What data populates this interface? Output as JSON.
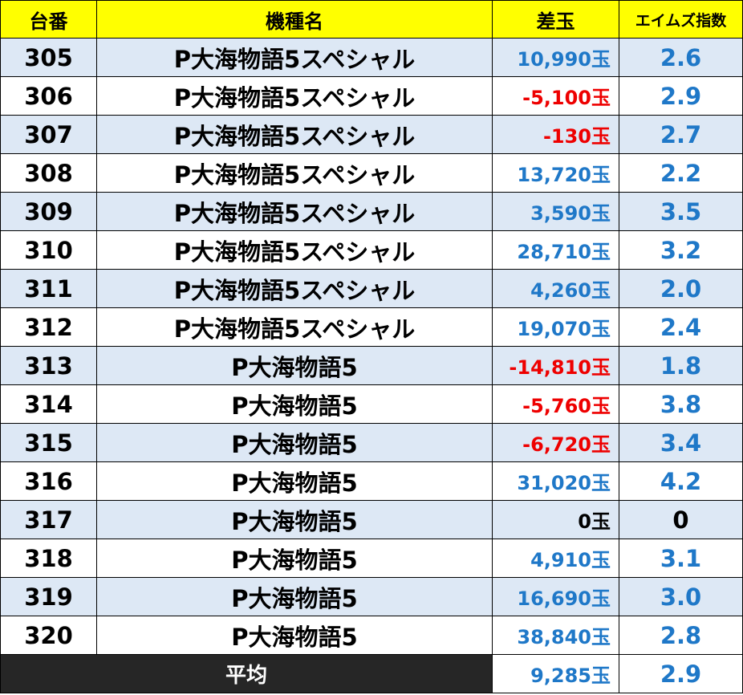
{
  "headers": {
    "unit": "台番",
    "model": "機種名",
    "diff": "差玉",
    "index": "エイムズ指数"
  },
  "colors": {
    "header_bg": "#ffff00",
    "alt_row_bg": "#dde8f5",
    "positive": "#1f78c8",
    "negative": "#ee0000",
    "footer_bg": "#262626"
  },
  "rows": [
    {
      "unit": "305",
      "model": "P大海物語5スペシャル",
      "diff": "10,990玉",
      "diff_sign": "positive",
      "index": "2.6",
      "index_sign": "positive"
    },
    {
      "unit": "306",
      "model": "P大海物語5スペシャル",
      "diff": "-5,100玉",
      "diff_sign": "negative",
      "index": "2.9",
      "index_sign": "positive"
    },
    {
      "unit": "307",
      "model": "P大海物語5スペシャル",
      "diff": "-130玉",
      "diff_sign": "negative",
      "index": "2.7",
      "index_sign": "positive"
    },
    {
      "unit": "308",
      "model": "P大海物語5スペシャル",
      "diff": "13,720玉",
      "diff_sign": "positive",
      "index": "2.2",
      "index_sign": "positive"
    },
    {
      "unit": "309",
      "model": "P大海物語5スペシャル",
      "diff": "3,590玉",
      "diff_sign": "positive",
      "index": "3.5",
      "index_sign": "positive"
    },
    {
      "unit": "310",
      "model": "P大海物語5スペシャル",
      "diff": "28,710玉",
      "diff_sign": "positive",
      "index": "3.2",
      "index_sign": "positive"
    },
    {
      "unit": "311",
      "model": "P大海物語5スペシャル",
      "diff": "4,260玉",
      "diff_sign": "positive",
      "index": "2.0",
      "index_sign": "positive"
    },
    {
      "unit": "312",
      "model": "P大海物語5スペシャル",
      "diff": "19,070玉",
      "diff_sign": "positive",
      "index": "2.4",
      "index_sign": "positive"
    },
    {
      "unit": "313",
      "model": "P大海物語5",
      "diff": "-14,810玉",
      "diff_sign": "negative",
      "index": "1.8",
      "index_sign": "positive"
    },
    {
      "unit": "314",
      "model": "P大海物語5",
      "diff": "-5,760玉",
      "diff_sign": "negative",
      "index": "3.8",
      "index_sign": "positive"
    },
    {
      "unit": "315",
      "model": "P大海物語5",
      "diff": "-6,720玉",
      "diff_sign": "negative",
      "index": "3.4",
      "index_sign": "positive"
    },
    {
      "unit": "316",
      "model": "P大海物語5",
      "diff": "31,020玉",
      "diff_sign": "positive",
      "index": "4.2",
      "index_sign": "positive"
    },
    {
      "unit": "317",
      "model": "P大海物語5",
      "diff": "0玉",
      "diff_sign": "zero",
      "index": "0",
      "index_sign": "zero"
    },
    {
      "unit": "318",
      "model": "P大海物語5",
      "diff": "4,910玉",
      "diff_sign": "positive",
      "index": "3.1",
      "index_sign": "positive"
    },
    {
      "unit": "319",
      "model": "P大海物語5",
      "diff": "16,690玉",
      "diff_sign": "positive",
      "index": "3.0",
      "index_sign": "positive"
    },
    {
      "unit": "320",
      "model": "P大海物語5",
      "diff": "38,840玉",
      "diff_sign": "positive",
      "index": "2.8",
      "index_sign": "positive"
    }
  ],
  "footer": {
    "label": "平均",
    "diff": "9,285玉",
    "index": "2.9"
  }
}
